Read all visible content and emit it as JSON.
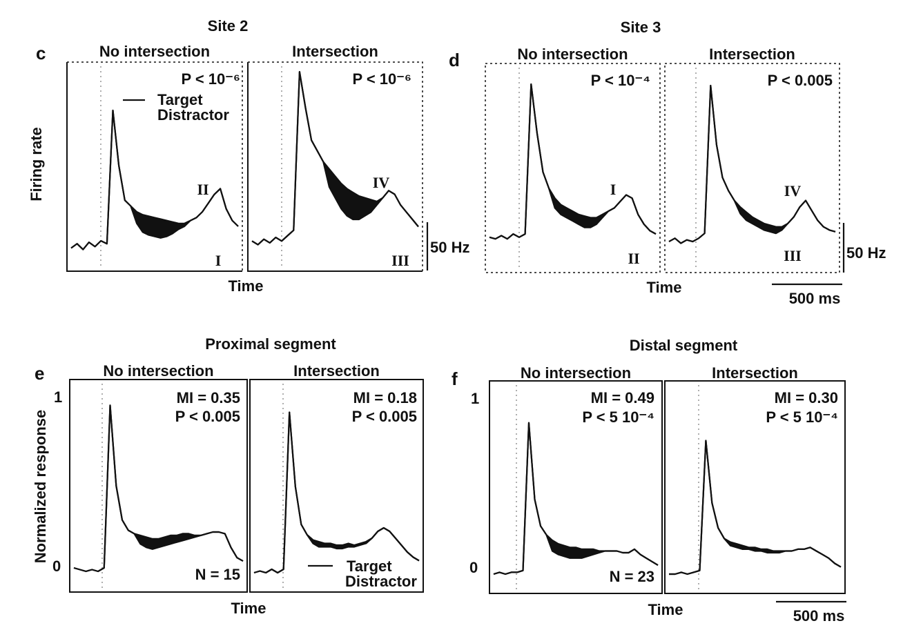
{
  "figure": {
    "site2_title": "Site 2",
    "site3_title": "Site 3",
    "proximal_title": "Proximal segment",
    "distal_title": "Distal segment",
    "x_label": "Time",
    "y_label_top": "Firing rate",
    "y_label_bottom": "Normalized response",
    "scale_hz": "50 Hz",
    "scale_ms": "500 ms",
    "legend_target": "Target",
    "legend_distractor": "Distractor",
    "label_c": "c",
    "label_d": "d",
    "label_e": "e",
    "label_f": "f",
    "y_tick_1": "1",
    "y_tick_0": "0"
  },
  "chart_data": [
    {
      "id": "c-no",
      "type": "line",
      "panel": "c",
      "title": "No intersection",
      "stat": "P < 10⁻⁶",
      "roman_top": "II",
      "roman_bottom": "I",
      "series": [
        {
          "name": "Target",
          "values": [
            0.05,
            0.08,
            0.04,
            0.09,
            0.06,
            0.1,
            0.08,
            1.0,
            0.62,
            0.38,
            0.34,
            0.3,
            0.28,
            0.27,
            0.26,
            0.25,
            0.24,
            0.23,
            0.22,
            0.22,
            0.24,
            0.26,
            0.3,
            0.36,
            0.42,
            0.46,
            0.32,
            0.24,
            0.2
          ]
        },
        {
          "name": "Distractor",
          "values": [
            0.05,
            0.08,
            0.04,
            0.09,
            0.06,
            0.1,
            0.08,
            1.0,
            0.62,
            0.38,
            0.34,
            0.22,
            0.16,
            0.14,
            0.13,
            0.12,
            0.13,
            0.15,
            0.18,
            0.2,
            0.24,
            0.26,
            0.3,
            0.36,
            0.42,
            0.46,
            0.32,
            0.24,
            0.2
          ]
        }
      ]
    },
    {
      "id": "c-int",
      "type": "line",
      "panel": "c",
      "title": "Intersection",
      "stat": "P < 10⁻⁶",
      "roman_top": "IV",
      "roman_bottom": "III",
      "series": [
        {
          "name": "Target",
          "values": [
            0.06,
            0.04,
            0.07,
            0.05,
            0.08,
            0.06,
            0.09,
            0.12,
            1.0,
            0.8,
            0.62,
            0.56,
            0.5,
            0.46,
            0.42,
            0.38,
            0.35,
            0.33,
            0.31,
            0.3,
            0.29,
            0.28,
            0.3,
            0.34,
            0.32,
            0.26,
            0.22,
            0.18,
            0.14
          ]
        },
        {
          "name": "Distractor",
          "values": [
            0.06,
            0.04,
            0.07,
            0.05,
            0.08,
            0.06,
            0.09,
            0.12,
            1.0,
            0.8,
            0.62,
            0.56,
            0.5,
            0.36,
            0.3,
            0.24,
            0.2,
            0.18,
            0.18,
            0.2,
            0.22,
            0.26,
            0.3,
            0.34,
            0.32,
            0.26,
            0.22,
            0.18,
            0.14
          ]
        }
      ]
    },
    {
      "id": "d-no",
      "type": "line",
      "panel": "d",
      "title": "No intersection",
      "stat": "P < 10⁻⁴",
      "roman_top": "I",
      "roman_bottom": "II",
      "series": [
        {
          "name": "Target",
          "values": [
            0.06,
            0.05,
            0.07,
            0.05,
            0.08,
            0.06,
            0.08,
            1.0,
            0.7,
            0.46,
            0.36,
            0.3,
            0.26,
            0.24,
            0.22,
            0.2,
            0.19,
            0.18,
            0.18,
            0.2,
            0.22,
            0.24,
            0.28,
            0.32,
            0.3,
            0.2,
            0.14,
            0.1,
            0.08
          ]
        },
        {
          "name": "Distractor",
          "values": [
            0.06,
            0.05,
            0.07,
            0.05,
            0.08,
            0.06,
            0.08,
            1.0,
            0.7,
            0.46,
            0.36,
            0.24,
            0.2,
            0.18,
            0.16,
            0.14,
            0.12,
            0.12,
            0.14,
            0.18,
            0.22,
            0.24,
            0.28,
            0.32,
            0.3,
            0.2,
            0.14,
            0.1,
            0.08
          ]
        }
      ]
    },
    {
      "id": "d-int",
      "type": "line",
      "panel": "d",
      "title": "Intersection",
      "stat": "P < 0.005",
      "roman_top": "IV",
      "roman_bottom": "III",
      "series": [
        {
          "name": "Target",
          "values": [
            0.05,
            0.07,
            0.04,
            0.06,
            0.05,
            0.07,
            0.1,
            1.0,
            0.64,
            0.44,
            0.36,
            0.3,
            0.26,
            0.23,
            0.2,
            0.18,
            0.16,
            0.15,
            0.14,
            0.14,
            0.16,
            0.2,
            0.26,
            0.3,
            0.24,
            0.18,
            0.14,
            0.12,
            0.11
          ]
        },
        {
          "name": "Distractor",
          "values": [
            0.05,
            0.07,
            0.04,
            0.06,
            0.05,
            0.07,
            0.1,
            1.0,
            0.64,
            0.44,
            0.36,
            0.3,
            0.22,
            0.18,
            0.16,
            0.14,
            0.12,
            0.11,
            0.1,
            0.12,
            0.16,
            0.2,
            0.26,
            0.3,
            0.24,
            0.18,
            0.14,
            0.12,
            0.11
          ]
        }
      ]
    },
    {
      "id": "e-no",
      "type": "line",
      "panel": "e",
      "title": "No intersection",
      "stat": "MI = 0.35",
      "stat2": "P < 0.005",
      "n": "N = 15",
      "series": [
        {
          "name": "Target",
          "values": [
            0.02,
            0.01,
            0.0,
            0.01,
            0.0,
            0.02,
            0.97,
            0.5,
            0.3,
            0.24,
            0.22,
            0.21,
            0.2,
            0.19,
            0.19,
            0.2,
            0.21,
            0.21,
            0.22,
            0.22,
            0.21,
            0.21,
            0.22,
            0.23,
            0.23,
            0.22,
            0.14,
            0.08,
            0.06
          ]
        },
        {
          "name": "Distractor",
          "values": [
            0.02,
            0.01,
            0.0,
            0.01,
            0.0,
            0.02,
            0.97,
            0.5,
            0.3,
            0.24,
            0.22,
            0.16,
            0.14,
            0.13,
            0.14,
            0.15,
            0.16,
            0.17,
            0.18,
            0.19,
            0.2,
            0.21,
            0.22,
            0.23,
            0.23,
            0.22,
            0.14,
            0.08,
            0.06
          ]
        }
      ]
    },
    {
      "id": "e-int",
      "type": "line",
      "panel": "e",
      "title": "Intersection",
      "stat": "MI = 0.18",
      "stat2": "P < 0.005",
      "series": [
        {
          "name": "Target",
          "values": [
            0.0,
            0.01,
            0.0,
            0.02,
            0.0,
            0.02,
            0.93,
            0.5,
            0.28,
            0.22,
            0.19,
            0.18,
            0.17,
            0.17,
            0.16,
            0.16,
            0.17,
            0.16,
            0.17,
            0.18,
            0.2,
            0.24,
            0.26,
            0.24,
            0.2,
            0.16,
            0.12,
            0.09,
            0.07
          ]
        },
        {
          "name": "Distractor",
          "values": [
            0.0,
            0.01,
            0.0,
            0.02,
            0.0,
            0.02,
            0.93,
            0.5,
            0.28,
            0.22,
            0.17,
            0.15,
            0.15,
            0.15,
            0.14,
            0.14,
            0.15,
            0.15,
            0.16,
            0.17,
            0.2,
            0.24,
            0.26,
            0.24,
            0.2,
            0.16,
            0.12,
            0.09,
            0.07
          ]
        }
      ]
    },
    {
      "id": "f-no",
      "type": "line",
      "panel": "f",
      "title": "No intersection",
      "stat": "MI = 0.49",
      "stat2": "P < 5 10⁻⁴",
      "n": "N = 23",
      "series": [
        {
          "name": "Target",
          "values": [
            0.0,
            0.01,
            0.0,
            0.01,
            0.01,
            0.02,
            0.85,
            0.42,
            0.27,
            0.22,
            0.19,
            0.17,
            0.16,
            0.15,
            0.15,
            0.14,
            0.14,
            0.14,
            0.13,
            0.13,
            0.13,
            0.13,
            0.12,
            0.12,
            0.14,
            0.11,
            0.09,
            0.07,
            0.05
          ]
        },
        {
          "name": "Distractor",
          "values": [
            0.0,
            0.01,
            0.0,
            0.01,
            0.01,
            0.02,
            0.85,
            0.42,
            0.27,
            0.22,
            0.13,
            0.11,
            0.1,
            0.09,
            0.09,
            0.09,
            0.1,
            0.11,
            0.12,
            0.13,
            0.13,
            0.13,
            0.12,
            0.12,
            0.14,
            0.11,
            0.09,
            0.07,
            0.05
          ]
        }
      ]
    },
    {
      "id": "f-int",
      "type": "line",
      "panel": "f",
      "title": "Intersection",
      "stat": "MI = 0.30",
      "stat2": "P < 5 10⁻⁴",
      "series": [
        {
          "name": "Target",
          "values": [
            0.0,
            0.0,
            0.01,
            0.0,
            0.01,
            0.02,
            0.75,
            0.4,
            0.26,
            0.2,
            0.18,
            0.17,
            0.16,
            0.15,
            0.15,
            0.14,
            0.14,
            0.13,
            0.13,
            0.13,
            0.13,
            0.14,
            0.14,
            0.15,
            0.13,
            0.11,
            0.09,
            0.06,
            0.04
          ]
        },
        {
          "name": "Distractor",
          "values": [
            0.0,
            0.0,
            0.01,
            0.0,
            0.01,
            0.02,
            0.75,
            0.4,
            0.26,
            0.2,
            0.16,
            0.15,
            0.14,
            0.14,
            0.13,
            0.13,
            0.12,
            0.12,
            0.12,
            0.13,
            0.13,
            0.14,
            0.14,
            0.15,
            0.13,
            0.11,
            0.09,
            0.06,
            0.04
          ]
        }
      ]
    }
  ]
}
